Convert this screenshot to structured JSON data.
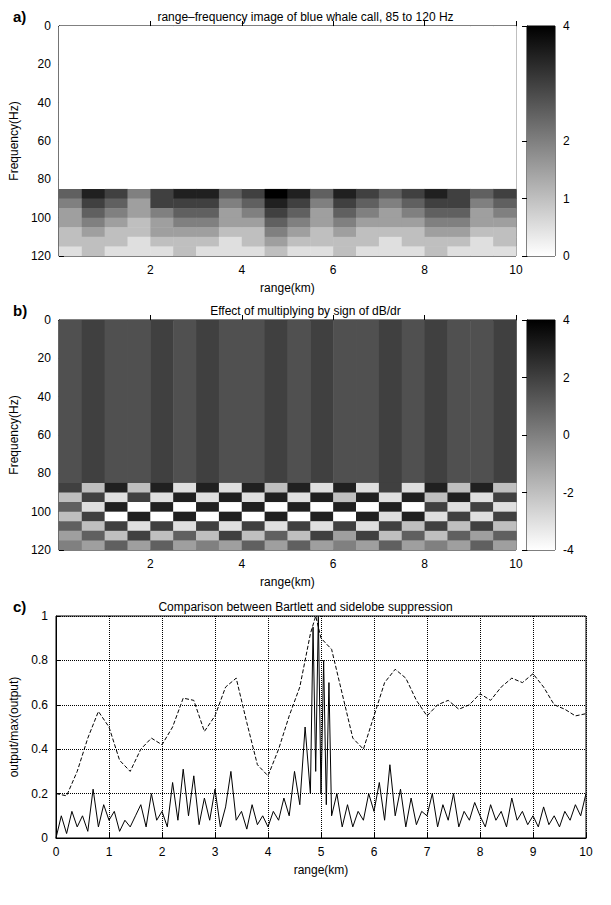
{
  "chart_data": [
    {
      "type": "heatmap",
      "panel_label": "a)",
      "title": "range–frequency image of blue whale call, 85 to 120 Hz",
      "x_label": "range(km)",
      "y_label": "Frequency(Hz)",
      "xlim": [
        0,
        10
      ],
      "xticks": [
        2,
        4,
        6,
        8,
        10
      ],
      "ylim": [
        0,
        120
      ],
      "yticks": [
        0,
        20,
        40,
        60,
        80,
        100,
        120
      ],
      "x_edges": [
        0,
        0.5,
        1,
        1.5,
        2,
        2.5,
        3,
        3.5,
        4,
        4.5,
        5,
        5.5,
        6,
        6.5,
        7,
        7.5,
        8,
        8.5,
        9,
        9.5,
        10
      ],
      "y_edges": [
        0,
        85,
        90,
        95,
        100,
        105,
        110,
        115,
        120
      ],
      "cells": [
        [
          0,
          0,
          0,
          0,
          0,
          0,
          0,
          0,
          0,
          0,
          0,
          0,
          0,
          0,
          0,
          0,
          0,
          0,
          0,
          0
        ],
        [
          2.5,
          3.5,
          3,
          2,
          3,
          3.5,
          3.5,
          2.5,
          3,
          4,
          3.5,
          2.5,
          3.5,
          3,
          2.5,
          3,
          3.5,
          3,
          2.5,
          3
        ],
        [
          2,
          3,
          2.5,
          1.5,
          3,
          3,
          3,
          2,
          2.5,
          3.5,
          3,
          2,
          3,
          2.5,
          2,
          2.5,
          3,
          3,
          2,
          2.5
        ],
        [
          1.5,
          2.5,
          2,
          1.5,
          2,
          2.5,
          2.5,
          1.5,
          2,
          3,
          2.5,
          1.5,
          2.5,
          2,
          1.5,
          2,
          2.5,
          2.5,
          1.5,
          2
        ],
        [
          1.5,
          2,
          1.5,
          1,
          1.5,
          2,
          2,
          1.5,
          1.5,
          2.5,
          2,
          1.5,
          2,
          1.5,
          1.5,
          1.5,
          2,
          2,
          1.5,
          1.5
        ],
        [
          1,
          1.5,
          1,
          1,
          1.5,
          1.5,
          1.5,
          1,
          1,
          2,
          1.5,
          1,
          1.5,
          1,
          1,
          1,
          1.5,
          1.5,
          1,
          1
        ],
        [
          1,
          1,
          1,
          0.5,
          1,
          1,
          1,
          0.5,
          1,
          1.5,
          1,
          1,
          1,
          1,
          0.5,
          1,
          1,
          1,
          0.5,
          1
        ],
        [
          0.5,
          1,
          0.5,
          0.5,
          0.5,
          1,
          0.5,
          0.5,
          0.5,
          1,
          0.5,
          0.5,
          1,
          0.5,
          0.5,
          0.5,
          1,
          0.5,
          0.5,
          0.5
        ]
      ],
      "colorbar_range": [
        0,
        4
      ],
      "colorbar_ticks": [
        0,
        1,
        2,
        4
      ]
    },
    {
      "type": "heatmap",
      "panel_label": "b)",
      "title": "Effect of multiplying by sign of dB/dr",
      "x_label": "range(km)",
      "y_label": "Frequency(Hz)",
      "xlim": [
        0,
        10
      ],
      "xticks": [
        2,
        4,
        6,
        8,
        10
      ],
      "ylim": [
        0,
        120
      ],
      "yticks": [
        0,
        20,
        40,
        60,
        80,
        100,
        120
      ],
      "x_edges": [
        0,
        0.5,
        1,
        1.5,
        2,
        2.5,
        3,
        3.5,
        4,
        4.5,
        5,
        5.5,
        6,
        6.5,
        7,
        7.5,
        8,
        8.5,
        9,
        9.5,
        10
      ],
      "y_edges": [
        0,
        85,
        90,
        95,
        100,
        105,
        110,
        115,
        120
      ],
      "cells": [
        [
          1.5,
          2,
          1.5,
          1.5,
          2,
          1.5,
          2,
          1.5,
          1.5,
          2,
          1.5,
          2,
          1.5,
          1.5,
          2,
          1.5,
          2,
          1.5,
          1.5,
          2
        ],
        [
          2,
          -2,
          3,
          -2,
          3,
          -3,
          3,
          -3,
          3,
          -2,
          3,
          -3,
          3,
          -3,
          2,
          -3,
          3,
          -2,
          3,
          -2
        ],
        [
          -2,
          2,
          -3,
          2,
          -3,
          3,
          -3,
          3,
          -3,
          3,
          -3,
          3,
          -2,
          3,
          -3,
          3,
          -2,
          3,
          -3,
          2
        ],
        [
          1,
          -3,
          3,
          -4,
          3,
          -4,
          3,
          -4,
          3,
          -4,
          3,
          -4,
          3,
          -4,
          3,
          -4,
          2,
          -3,
          2,
          -3
        ],
        [
          -2,
          2,
          -4,
          3,
          -4,
          3,
          -4,
          3,
          -4,
          3,
          -4,
          3,
          -4,
          3,
          -3,
          3,
          -3,
          2,
          -3,
          2
        ],
        [
          1,
          -2,
          2,
          -3,
          2,
          -3,
          2,
          -3,
          2,
          -3,
          2,
          -3,
          2,
          -3,
          2,
          -2,
          2,
          -2,
          2,
          -2
        ],
        [
          -1,
          1,
          -2,
          2,
          -2,
          1,
          -2,
          2,
          -2,
          1,
          -2,
          2,
          -1,
          2,
          -2,
          1,
          -2,
          1,
          -1,
          1
        ],
        [
          0,
          -1,
          1,
          -1,
          1,
          -1,
          0,
          -1,
          1,
          -1,
          1,
          -1,
          0,
          -1,
          1,
          -1,
          0,
          -1,
          1,
          -1
        ]
      ],
      "colorbar_range": [
        -4,
        4
      ],
      "colorbar_ticks": [
        -4,
        -2,
        0,
        2,
        4
      ]
    },
    {
      "type": "line",
      "panel_label": "c)",
      "title": "Comparison between Bartlett and sidelobe suppression",
      "x_label": "range(km)",
      "y_label": "output/max(output)",
      "xlim": [
        0,
        10
      ],
      "xticks": [
        0,
        1,
        2,
        3,
        4,
        5,
        6,
        7,
        8,
        9,
        10
      ],
      "ylim": [
        0,
        1
      ],
      "yticks": [
        0,
        0.2,
        0.4,
        0.6,
        0.8,
        1
      ],
      "grid": true,
      "series": [
        {
          "color": "#000000",
          "line_style": "solid",
          "x": [
            0,
            0.1,
            0.2,
            0.3,
            0.4,
            0.5,
            0.6,
            0.7,
            0.8,
            0.9,
            1,
            1.1,
            1.2,
            1.3,
            1.4,
            1.5,
            1.6,
            1.7,
            1.8,
            1.9,
            2,
            2.1,
            2.2,
            2.3,
            2.4,
            2.5,
            2.6,
            2.7,
            2.8,
            2.9,
            3,
            3.1,
            3.2,
            3.3,
            3.4,
            3.5,
            3.6,
            3.7,
            3.8,
            3.9,
            4,
            4.1,
            4.2,
            4.3,
            4.4,
            4.5,
            4.6,
            4.7,
            4.8,
            4.85,
            4.9,
            4.95,
            5,
            5.05,
            5.1,
            5.15,
            5.2,
            5.3,
            5.4,
            5.5,
            5.6,
            5.7,
            5.8,
            5.9,
            6,
            6.1,
            6.2,
            6.3,
            6.4,
            6.5,
            6.6,
            6.7,
            6.8,
            6.9,
            7,
            7.1,
            7.2,
            7.3,
            7.4,
            7.5,
            7.6,
            7.7,
            7.8,
            7.9,
            8,
            8.1,
            8.2,
            8.3,
            8.4,
            8.5,
            8.6,
            8.7,
            8.8,
            8.9,
            9,
            9.1,
            9.2,
            9.3,
            9.4,
            9.5,
            9.6,
            9.7,
            9.8,
            9.9,
            10
          ],
          "values": [
            0,
            0.1,
            0.02,
            0.12,
            0.05,
            0.1,
            0.03,
            0.22,
            0.05,
            0.15,
            0.08,
            0.12,
            0.03,
            0.08,
            0.05,
            0.1,
            0.15,
            0.05,
            0.2,
            0.08,
            0.12,
            0.05,
            0.25,
            0.08,
            0.31,
            0.1,
            0.28,
            0.06,
            0.18,
            0.08,
            0.22,
            0.05,
            0.14,
            0.3,
            0.08,
            0.12,
            0.04,
            0.15,
            0.06,
            0.1,
            0.05,
            0.12,
            0.08,
            0.18,
            0.1,
            0.3,
            0.15,
            0.5,
            0.2,
            0.95,
            0.3,
            1,
            0.2,
            0.8,
            0.15,
            0.7,
            0.1,
            0.2,
            0.05,
            0.15,
            0.05,
            0.12,
            0.08,
            0.2,
            0.12,
            0.25,
            0.08,
            0.33,
            0.1,
            0.22,
            0.05,
            0.18,
            0.06,
            0.12,
            0.1,
            0.2,
            0.05,
            0.15,
            0.08,
            0.2,
            0.05,
            0.12,
            0.08,
            0.16,
            0.1,
            0.05,
            0.15,
            0.08,
            0.12,
            0.05,
            0.18,
            0.08,
            0.12,
            0.06,
            0.1,
            0.05,
            0.14,
            0.06,
            0.1,
            0.05,
            0.12,
            0.08,
            0.15,
            0.1,
            0.2
          ]
        },
        {
          "color": "#000000",
          "line_style": "dashed",
          "x": [
            0,
            0.2,
            0.4,
            0.6,
            0.8,
            1,
            1.2,
            1.4,
            1.6,
            1.8,
            2,
            2.2,
            2.4,
            2.6,
            2.8,
            3,
            3.2,
            3.4,
            3.6,
            3.8,
            4,
            4.2,
            4.4,
            4.6,
            4.8,
            4.9,
            5,
            5.2,
            5.4,
            5.6,
            5.8,
            6,
            6.2,
            6.4,
            6.6,
            6.8,
            7,
            7.2,
            7.4,
            7.6,
            7.8,
            8,
            8.2,
            8.4,
            8.6,
            8.8,
            9,
            9.2,
            9.4,
            9.6,
            9.8,
            10
          ],
          "values": [
            0.2,
            0.19,
            0.3,
            0.45,
            0.57,
            0.5,
            0.35,
            0.3,
            0.4,
            0.45,
            0.42,
            0.5,
            0.63,
            0.62,
            0.48,
            0.55,
            0.68,
            0.72,
            0.52,
            0.33,
            0.28,
            0.4,
            0.55,
            0.68,
            0.92,
            1,
            0.9,
            0.85,
            0.65,
            0.45,
            0.4,
            0.55,
            0.7,
            0.76,
            0.72,
            0.62,
            0.55,
            0.6,
            0.62,
            0.58,
            0.6,
            0.65,
            0.62,
            0.68,
            0.72,
            0.7,
            0.74,
            0.68,
            0.6,
            0.58,
            0.55,
            0.56
          ]
        }
      ]
    }
  ]
}
